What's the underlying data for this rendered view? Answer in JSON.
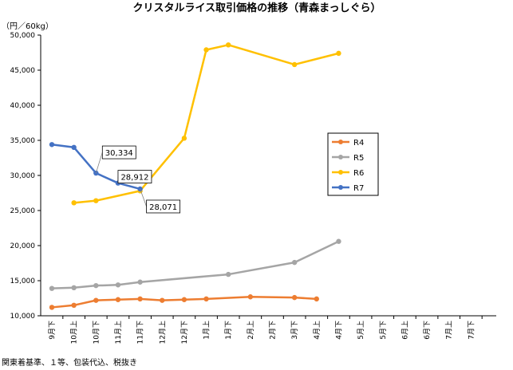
{
  "chart_data": {
    "type": "line",
    "title": "クリスタルライス取引価格の推移（青森まっしぐら）",
    "unit_label": "（円／60kg）",
    "ylim": [
      10000,
      50000
    ],
    "yticks": [
      10000,
      15000,
      20000,
      25000,
      30000,
      35000,
      40000,
      45000,
      50000
    ],
    "ytick_labels": [
      "10,000",
      "15,000",
      "20,000",
      "25,000",
      "30,000",
      "35,000",
      "40,000",
      "45,000",
      "50,000"
    ],
    "categories": [
      "9月下",
      "10月上",
      "10月下",
      "11月上",
      "11月下",
      "12月上",
      "12月下",
      "1月上",
      "1月下",
      "2月上",
      "2月下",
      "3月下",
      "4月上",
      "4月下",
      "5月上",
      "5月下",
      "6月上",
      "6月下",
      "7月上",
      "7月下"
    ],
    "series": [
      {
        "name": "R4",
        "color": "#ED7D31",
        "values": [
          11200,
          11500,
          12200,
          12300,
          12400,
          12200,
          12300,
          12400,
          null,
          12700,
          null,
          12600,
          12400,
          null,
          null,
          null,
          null,
          null,
          null,
          null
        ]
      },
      {
        "name": "R5",
        "color": "#A5A5A5",
        "values": [
          13900,
          14000,
          14300,
          14400,
          14800,
          null,
          null,
          null,
          15900,
          null,
          null,
          17600,
          null,
          20600,
          null,
          null,
          null,
          null,
          null,
          null
        ]
      },
      {
        "name": "R6",
        "color": "#FFC000",
        "values": [
          null,
          26100,
          26400,
          null,
          27800,
          null,
          35300,
          47900,
          48600,
          null,
          null,
          45800,
          null,
          47400,
          null,
          null,
          null,
          null,
          null,
          null
        ]
      },
      {
        "name": "R7",
        "color": "#4472C4",
        "values": [
          34400,
          34000,
          30334,
          28912,
          28071,
          null,
          null,
          null,
          null,
          null,
          null,
          null,
          null,
          null,
          null,
          null,
          null,
          null,
          null,
          null
        ]
      }
    ],
    "annotations": [
      {
        "text": "30,334",
        "series": "R7",
        "index": 2
      },
      {
        "text": "28,912",
        "series": "R7",
        "index": 3
      },
      {
        "text": "28,071",
        "series": "R7",
        "index": 4
      }
    ],
    "legend_position": "right",
    "grid": false
  },
  "footnote": "関東着基準、１等、包装代込、税抜き"
}
